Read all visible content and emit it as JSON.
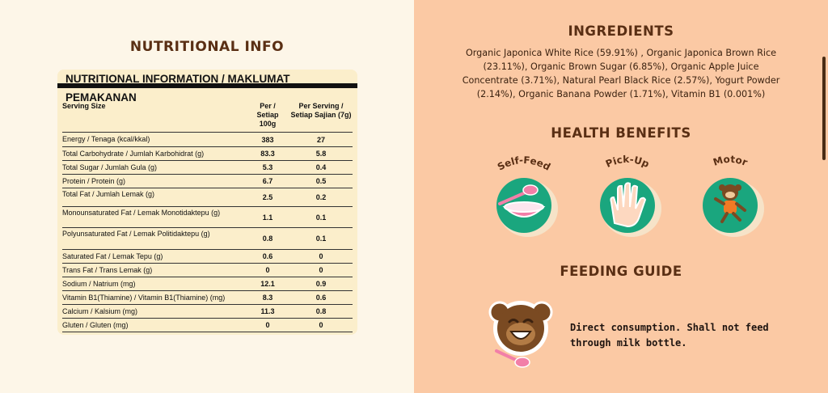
{
  "nutrition": {
    "heading": "NUTRITIONAL INFO",
    "table_title": "NUTRITIONAL INFORMATION / MAKLUMAT PEMAKANAN",
    "columns": [
      "Serving Size",
      "Per / Setiap 100g",
      "Per Serving / Setiap Sajian (7g)"
    ],
    "rows": [
      {
        "label": "Energy / Tenaga (kcal/kkal)",
        "per100": "383",
        "serving": "27"
      },
      {
        "label": "Total Carbohydrate / Jumlah Karbohidrat (g)",
        "per100": "83.3",
        "serving": "5.8"
      },
      {
        "label": "Total Sugar / Jumlah Gula (g)",
        "per100": "5.3",
        "serving": "0.4"
      },
      {
        "label": "Protein / Protein (g)",
        "per100": "6.7",
        "serving": "0.5"
      },
      {
        "label": "Total Fat / Jumlah Lemak (g)",
        "per100": "2.5",
        "serving": "0.2"
      },
      {
        "label": "Monounsaturated Fat / Lemak Monotidaktepu (g)",
        "per100": "1.1",
        "serving": "0.1"
      },
      {
        "label": "Polyunsaturated Fat / Lemak Politidaktepu (g)",
        "per100": "0.8",
        "serving": "0.1"
      },
      {
        "label": "Saturated Fat / Lemak Tepu (g)",
        "per100": "0.6",
        "serving": "0"
      },
      {
        "label": "Trans Fat / Trans Lemak (g)",
        "per100": "0",
        "serving": "0"
      },
      {
        "label": "Sodium / Natrium (mg)",
        "per100": "12.1",
        "serving": "0.9"
      },
      {
        "label": "Vitamin B1(Thiamine) / Vitamin B1(Thiamine) (mg)",
        "per100": "8.3",
        "serving": "0.6"
      },
      {
        "label": "Calcium / Kalsium (mg)",
        "per100": "11.3",
        "serving": "0.8"
      },
      {
        "label": "Gluten / Gluten (mg)",
        "per100": "0",
        "serving": "0"
      }
    ]
  },
  "ingredients": {
    "heading": "INGREDIENTS",
    "text": "Organic Japonica White Rice (59.91%) , Organic Japonica Brown Rice (23.11%), Organic Brown Sugar (6.85%), Organic Apple Juice Concentrate (3.71%), Natural Pearl Black Rice (2.57%), Yogurt Powder (2.14%), Organic Banana Powder (1.71%), Vitamin B1 (0.001%)"
  },
  "health": {
    "heading": "HEALTH BENEFITS",
    "items": [
      {
        "label": "Self-Feed",
        "icon": "bowl-spoon-icon"
      },
      {
        "label": "Pick-Up",
        "icon": "hand-icon"
      },
      {
        "label": "Motor",
        "icon": "monkey-running-icon"
      }
    ]
  },
  "feeding": {
    "heading": "FEEDING GUIDE",
    "text_line1": "Direct consumption. Shall not feed",
    "text_line2": "through milk bottle."
  },
  "colors": {
    "left_bg": "#fdf6e8",
    "right_bg": "#fbc9a4",
    "heading_brown": "#5a2f14",
    "badge_green": "#1aa67e",
    "accent_pink": "#f27fa8"
  }
}
